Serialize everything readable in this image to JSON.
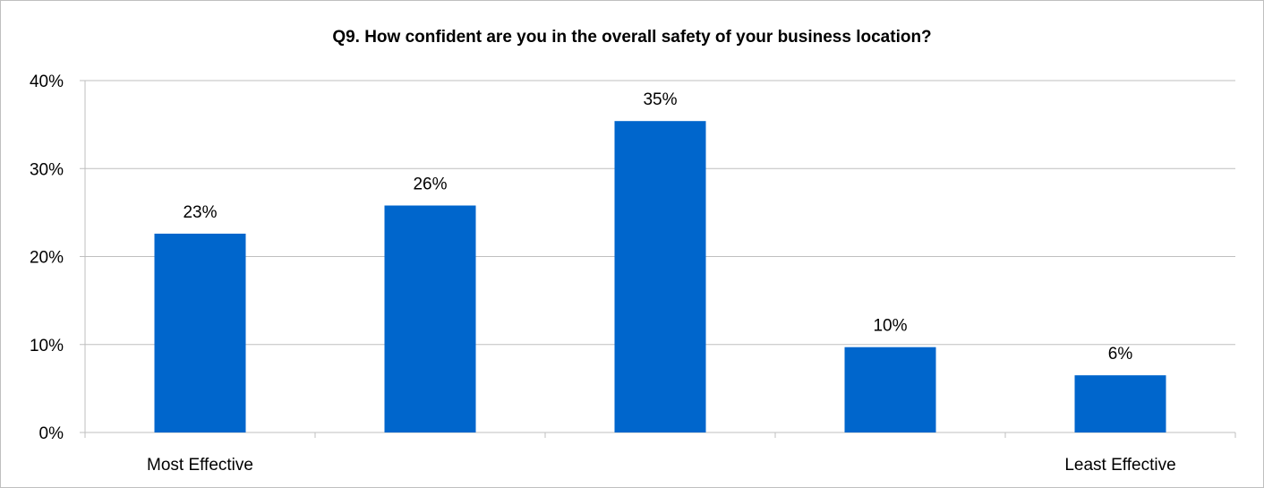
{
  "chart_data": {
    "type": "bar",
    "title": "Q9. How confident are you in the overall safety of your business location?",
    "categories": [
      "Most Effective",
      "",
      "",
      "",
      "Least Effective"
    ],
    "values": [
      0.226,
      0.258,
      0.354,
      0.097,
      0.065
    ],
    "data_labels": [
      "23%",
      "26%",
      "35%",
      "10%",
      "6%"
    ],
    "yticks": [
      "0%",
      "10%",
      "20%",
      "30%",
      "40%"
    ],
    "ylim": [
      0,
      0.4
    ],
    "grid": true,
    "legend": "none",
    "bar_color": "#0066cc"
  }
}
